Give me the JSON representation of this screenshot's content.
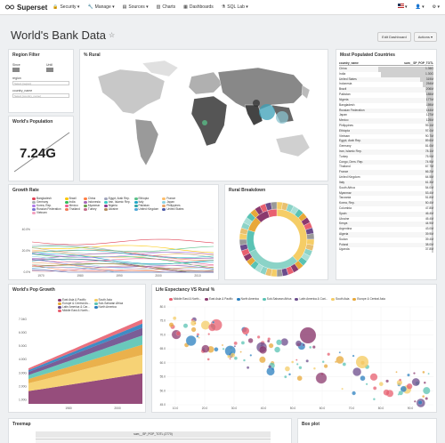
{
  "nav": {
    "brand": "Superset",
    "items": [
      {
        "label": "Security",
        "icon": "lock-icon"
      },
      {
        "label": "Manage",
        "icon": "wrench-icon"
      },
      {
        "label": "Sources",
        "icon": "database-icon"
      },
      {
        "label": "Charts",
        "icon": "bar-chart-icon"
      },
      {
        "label": "Dashboards",
        "icon": "dashboard-icon"
      },
      {
        "label": "SQL Lab",
        "icon": "flask-icon"
      }
    ]
  },
  "header": {
    "title": "World's Bank Data",
    "edit_button": "Edit Dashboard",
    "actions_button": "Actions"
  },
  "region_filter": {
    "title": "Region Filter",
    "since_label": "Since",
    "until_label": "Until",
    "region_label": "region",
    "region_placeholder": "Select [region]",
    "country_label": "country_name",
    "country_placeholder": "Select [country_name]"
  },
  "population": {
    "title": "World's Population",
    "value": "7.24G"
  },
  "rural_map": {
    "title": "% Rural"
  },
  "top_countries": {
    "title": "Most Populated Countries",
    "col_country": "country_name",
    "col_value": "sum__SP_POP_TOTL",
    "rows": [
      [
        "China",
        "1.36G",
        1.0
      ],
      [
        "India",
        "1.30G",
        0.955
      ],
      [
        "United States",
        "319M",
        0.235
      ],
      [
        "Indonesia",
        "254M",
        0.187
      ],
      [
        "Brazil",
        "206M",
        0.151
      ],
      [
        "Pakistan",
        "185M",
        0.136
      ],
      [
        "Nigeria",
        "177M",
        0.13
      ],
      [
        "Bangladesh",
        "159M",
        0.117
      ],
      [
        "Russian Federation",
        "144M",
        0.106
      ],
      [
        "Japan",
        "127M",
        0.093
      ],
      [
        "Mexico",
        "125M",
        0.092
      ],
      [
        "Philippines",
        "99.1M",
        0.073
      ],
      [
        "Ethiopia",
        "97.0M",
        0.071
      ],
      [
        "Vietnam",
        "90.7M",
        0.067
      ],
      [
        "Egypt, Arab Rep.",
        "89.6M",
        0.066
      ],
      [
        "Germany",
        "81.0M",
        0.06
      ],
      [
        "Iran, Islamic Rep.",
        "78.1M",
        0.057
      ],
      [
        "Turkey",
        "75.9M",
        0.056
      ],
      [
        "Congo, Dem. Rep.",
        "74.9M",
        0.055
      ],
      [
        "Thailand",
        "67.7M",
        0.05
      ],
      [
        "France",
        "66.2M",
        0.049
      ],
      [
        "United Kingdom",
        "64.5M",
        0.047
      ],
      [
        "Italy",
        "61.3M",
        0.045
      ],
      [
        "South Africa",
        "54.0M",
        0.04
      ],
      [
        "Myanmar",
        "53.4M",
        0.039
      ],
      [
        "Tanzania",
        "51.8M",
        0.038
      ],
      [
        "Korea, Rep.",
        "50.4M",
        0.037
      ],
      [
        "Colombia",
        "47.8M",
        0.035
      ],
      [
        "Spain",
        "46.4M",
        0.034
      ],
      [
        "Ukraine",
        "45.4M",
        0.033
      ],
      [
        "Kenya",
        "44.9M",
        0.033
      ],
      [
        "Argentina",
        "43.0M",
        0.032
      ],
      [
        "Algeria",
        "39.9M",
        0.029
      ],
      [
        "Sudan",
        "39.4M",
        0.029
      ],
      [
        "Poland",
        "38.0M",
        0.028
      ],
      [
        "Uganda",
        "37.8M",
        0.028
      ]
    ]
  },
  "growth_rate": {
    "title": "Growth Rate",
    "legend": [
      {
        "name": "Bangladesh",
        "color": "#e04355"
      },
      {
        "name": "Brazil",
        "color": "#fcc700"
      },
      {
        "name": "China",
        "color": "#ff7f44"
      },
      {
        "name": "Egypt, Arab Rep.",
        "color": "#a1a6bd"
      },
      {
        "name": "Ethiopia",
        "color": "#5ac189"
      },
      {
        "name": "France",
        "color": "#fdbe6b"
      },
      {
        "name": "Germany",
        "color": "#acb3b7"
      },
      {
        "name": "India",
        "color": "#33ba5a"
      },
      {
        "name": "Indonesia",
        "color": "#a868b7"
      },
      {
        "name": "Iran, Islamic Rep.",
        "color": "#3cccc4"
      },
      {
        "name": "Italy",
        "color": "#1fa8c9"
      },
      {
        "name": "Japan",
        "color": "#8fd3e4"
      },
      {
        "name": "Korea, Rep.",
        "color": "#b17be9"
      },
      {
        "name": "Mexico",
        "color": "#ea5e92"
      },
      {
        "name": "Myanmar",
        "color": "#6b9e4e"
      },
      {
        "name": "Nigeria",
        "color": "#8b3a8e"
      },
      {
        "name": "Pakistan",
        "color": "#33a5a5"
      },
      {
        "name": "Philippines",
        "color": "#e8a36b"
      },
      {
        "name": "Russian Federation",
        "color": "#7b74cf"
      },
      {
        "name": "Thailand",
        "color": "#f07c59"
      },
      {
        "name": "Turkey",
        "color": "#c36e8a"
      },
      {
        "name": "Ukraine",
        "color": "#b38b5e"
      },
      {
        "name": "United Kingdom",
        "color": "#50a8d8"
      },
      {
        "name": "United States",
        "color": "#4d5ba7"
      },
      {
        "name": "Vietnam",
        "color": "#f4a1c0"
      }
    ],
    "yticks": [
      "40.0%",
      "20.0%",
      "0.0%"
    ],
    "xticks": [
      "1970",
      "1980",
      "1990",
      "2000",
      "2010"
    ]
  },
  "rural_breakdown": {
    "title": "Rural Breakdown"
  },
  "pop_growth": {
    "title": "World's Pop Growth",
    "legend": [
      {
        "name": "East Asia & Pacific",
        "color": "#8b3a6e"
      },
      {
        "name": "South Asia",
        "color": "#f5cd66"
      },
      {
        "name": "Europe & Central As...",
        "color": "#e8a838"
      },
      {
        "name": "Sub-Saharan Africa",
        "color": "#5ac3b4"
      },
      {
        "name": "Latin America & Car...",
        "color": "#6b4c8c"
      },
      {
        "name": "North America",
        "color": "#2a7fbf"
      },
      {
        "name": "Middle East & North...",
        "color": "#e86070"
      }
    ],
    "yticks": [
      "7.04G",
      "6.00G",
      "5.00G",
      "4.00G",
      "3.00G",
      "2.00G",
      "1.00G"
    ],
    "xticks": [
      "1980",
      "2000"
    ]
  },
  "life_expectancy": {
    "title": "Life Expectancy VS Rural %",
    "legend": [
      {
        "name": "Middle East & North...",
        "color": "#e86070"
      },
      {
        "name": "East Asia & Pacific",
        "color": "#8b3a6e"
      },
      {
        "name": "North America",
        "color": "#2a7fbf"
      },
      {
        "name": "Sub-Saharan Africa",
        "color": "#5ac3b4"
      },
      {
        "name": "Latin America & Cari...",
        "color": "#6b4c8c"
      },
      {
        "name": "South Asia",
        "color": "#f5cd66"
      },
      {
        "name": "Europe & Central Asia",
        "color": "#e8a838"
      }
    ],
    "yticks": [
      "80.0",
      "75.0",
      "70.0",
      "65.0",
      "60.0",
      "55.0",
      "50.0",
      "45.0"
    ],
    "xticks": [
      "10.0",
      "20.0",
      "30.0",
      "40.0",
      "50.0",
      "60.0",
      "70.0",
      "80.0",
      "90.0"
    ]
  },
  "treemap": {
    "title": "Treemap",
    "header": "sum__SP_POP_TOTL (2770)"
  },
  "boxplot": {
    "title": "Box plot"
  }
}
